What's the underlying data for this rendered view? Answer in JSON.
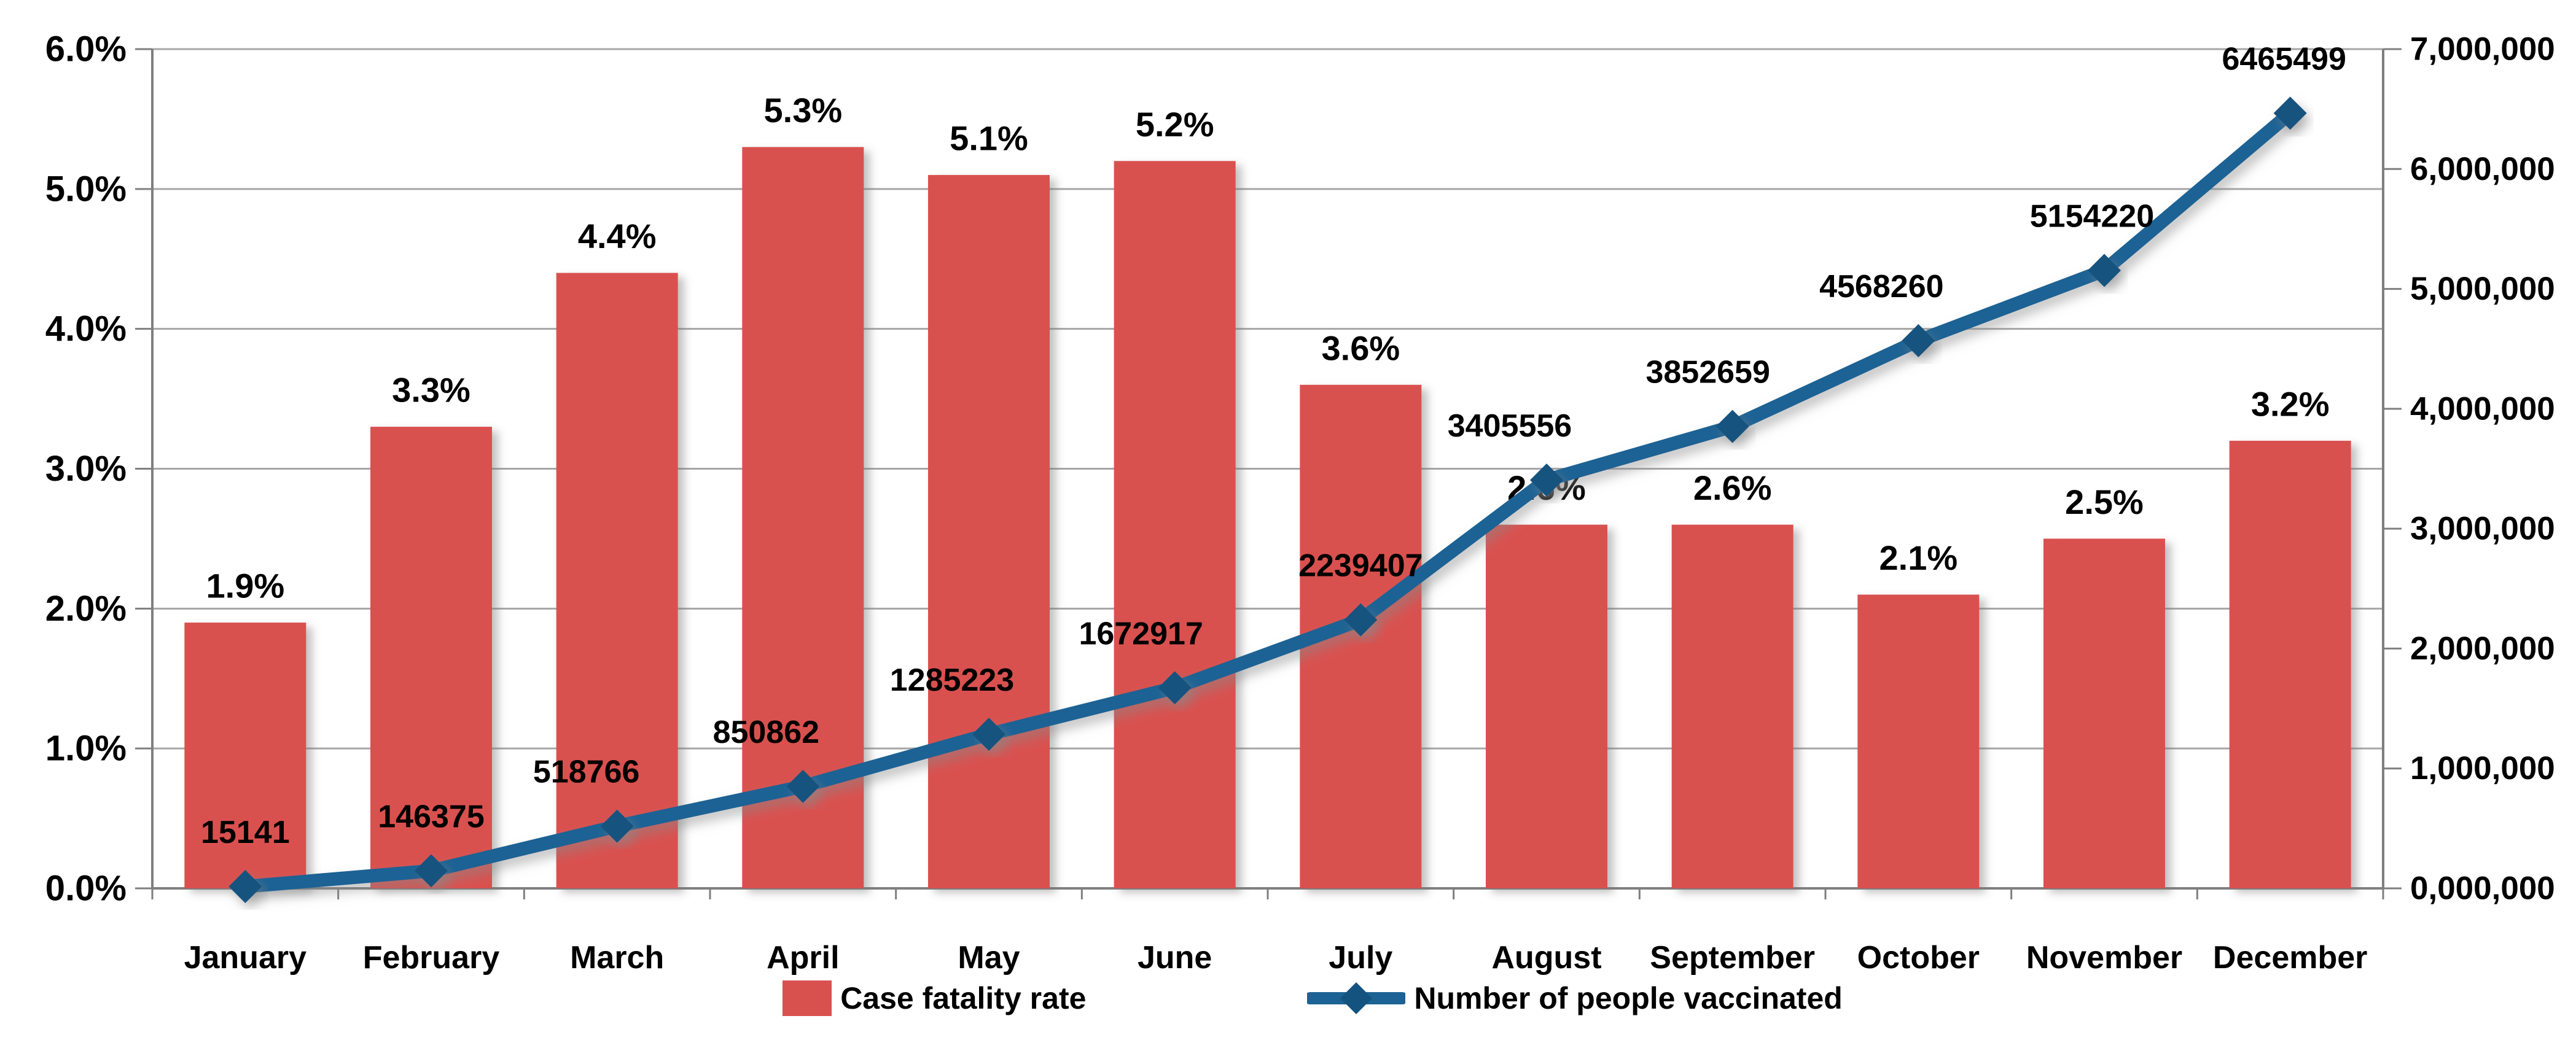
{
  "chart_data": {
    "type": "combo",
    "categories": [
      "January",
      "February",
      "March",
      "April",
      "May",
      "June",
      "July",
      "August",
      "September",
      "October",
      "November",
      "December"
    ],
    "series": [
      {
        "name": "Case fatality rate",
        "type": "bar",
        "axis": "left",
        "color": "#d9514f",
        "values": [
          1.9,
          3.3,
          4.4,
          5.3,
          5.1,
          5.2,
          3.6,
          2.6,
          2.6,
          2.1,
          2.5,
          3.2
        ],
        "labels": [
          "1.9%",
          "3.3%",
          "4.4%",
          "5.3%",
          "5.1%",
          "5.2%",
          "3.6%",
          "2.6%",
          "2.6%",
          "2.1%",
          "2.5%",
          "3.2%"
        ]
      },
      {
        "name": "Number of people vaccinated",
        "type": "line",
        "axis": "right",
        "color": "#1d6294",
        "marker": "diamond",
        "marker_color": "#14527f",
        "values": [
          15141,
          146375,
          518766,
          850862,
          1285223,
          1672917,
          2239407,
          3405556,
          3852659,
          4568260,
          5154220,
          6465499
        ],
        "labels": [
          "15141",
          "146375",
          "518766",
          "850862",
          "1285223",
          "1672917",
          "2239407",
          "3405556",
          "3852659",
          "4568260",
          "5154220",
          "6465499"
        ]
      }
    ],
    "left_axis": {
      "min": 0,
      "max": 6,
      "tick_labels": [
        "0.0%",
        "1.0%",
        "2.0%",
        "3.0%",
        "4.0%",
        "5.0%",
        "6.0%"
      ]
    },
    "right_axis": {
      "min": 0,
      "max": 7000000,
      "tick_labels": [
        "0,000,000",
        "1,000,000",
        "2,000,000",
        "3,000,000",
        "4,000,000",
        "5,000,000",
        "6,000,000",
        "7,000,000"
      ]
    },
    "grid": true,
    "legend_position": "bottom",
    "colors": {
      "grid": "#a6a6a6",
      "axis": "#7f7f7f",
      "text": "#000000",
      "background": "#ffffff"
    }
  }
}
